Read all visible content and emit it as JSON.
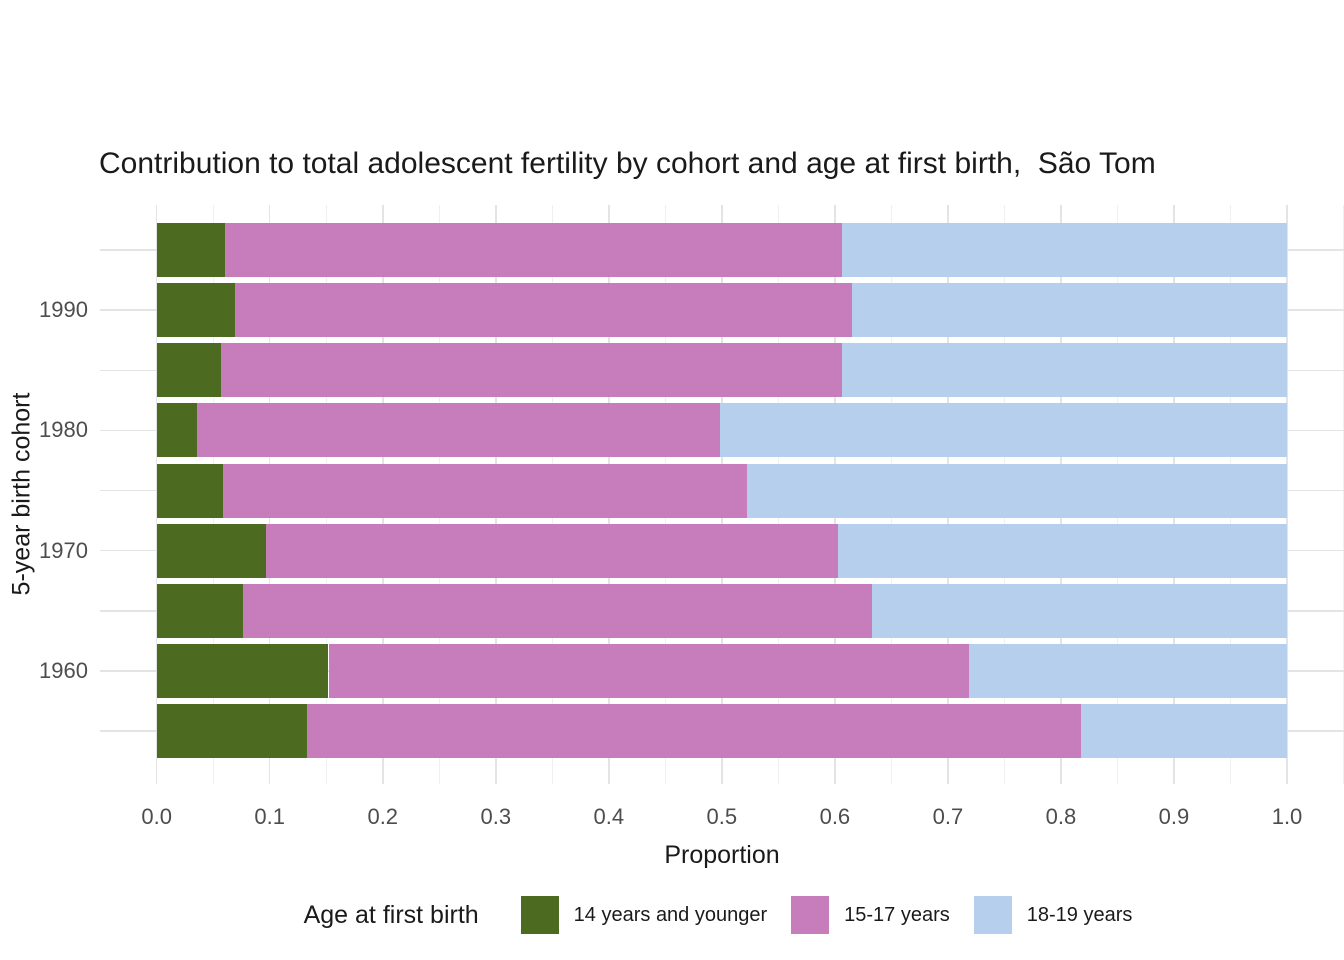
{
  "legend": {
    "title": "Age at first birth"
  },
  "axes": {
    "x_tick_labels": [
      "0.0",
      "0.1",
      "0.2",
      "0.3",
      "0.4",
      "0.5",
      "0.6",
      "0.7",
      "0.8",
      "0.9",
      "1.0"
    ],
    "y_tick_labels": [
      "1990",
      "1980",
      "1970",
      "1960"
    ]
  },
  "chart_data": {
    "type": "bar",
    "orientation": "horizontal",
    "stacked": true,
    "title": "Contribution to total adolescent fertility by cohort and age at first birth,  São Tom",
    "xlabel": "Proportion",
    "ylabel": "5-year birth cohort",
    "xlim": [
      0,
      1
    ],
    "grid": true,
    "legend_position": "bottom",
    "x_tick_labels": [
      "0.0",
      "0.1",
      "0.2",
      "0.3",
      "0.4",
      "0.5",
      "0.6",
      "0.7",
      "0.8",
      "0.9",
      "1.0"
    ],
    "categories": [
      "",
      "1990",
      "",
      "1980",
      "",
      "1970",
      "",
      "1960",
      ""
    ],
    "series": [
      {
        "name": "14 years and younger",
        "color": "#4c6a20",
        "values": [
          0.06,
          0.069,
          0.057,
          0.036,
          0.059,
          0.097,
          0.076,
          0.152,
          0.133
        ]
      },
      {
        "name": "15-17 years",
        "color": "#c77cbc",
        "values": [
          0.546,
          0.546,
          0.549,
          0.462,
          0.463,
          0.506,
          0.557,
          0.567,
          0.685
        ]
      },
      {
        "name": "18-19 years",
        "color": "#b5cfec",
        "values": [
          0.394,
          0.385,
          0.394,
          0.502,
          0.478,
          0.397,
          0.367,
          0.281,
          0.182
        ]
      }
    ]
  }
}
